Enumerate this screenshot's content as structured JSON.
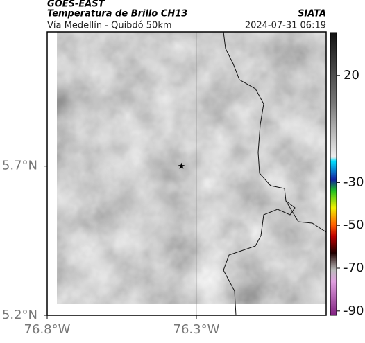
{
  "header": {
    "satellite": "GOES-EAST",
    "product": "Temperatura de Brillo CH13",
    "source": "SIATA",
    "route": "Vía Medellín - Quibdó 50km",
    "timestamp": "2024-07-31 06:19"
  },
  "map": {
    "lon_lim": [
      -76.8,
      -75.865
    ],
    "lat_lim": [
      5.2,
      6.15
    ],
    "lon_ticks": [
      {
        "value": -76.8,
        "label": "76.8°W"
      },
      {
        "value": -76.3,
        "label": "76.3°W"
      }
    ],
    "lat_ticks": [
      {
        "value": 5.7,
        "label": "5.7°N"
      },
      {
        "value": 5.2,
        "label": "5.2°N"
      }
    ],
    "marker": {
      "lon": -76.35,
      "lat": 5.7
    }
  },
  "colorbar": {
    "lim": [
      -92,
      40
    ],
    "ticks": [
      20,
      -30,
      -50,
      -70,
      -90
    ]
  }
}
